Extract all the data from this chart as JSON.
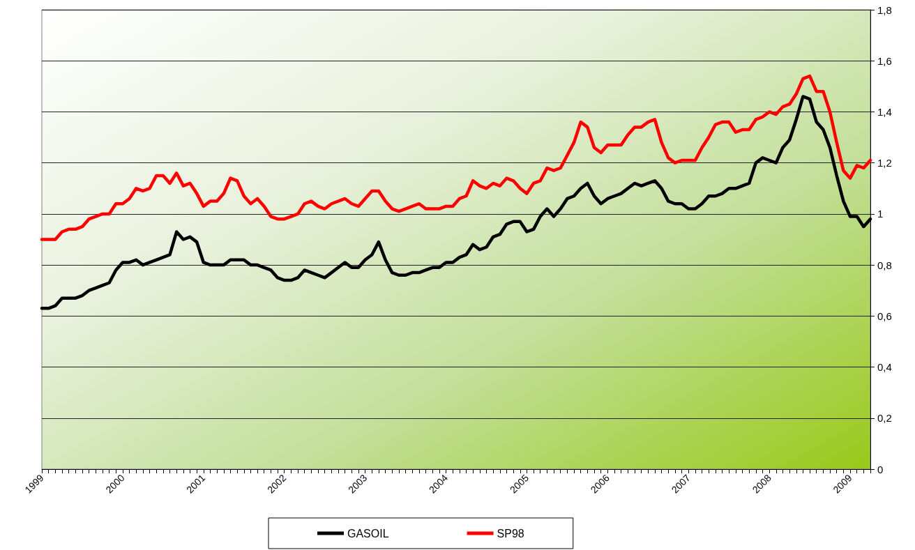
{
  "chart_data": {
    "type": "line",
    "categories": [
      "1999",
      null,
      null,
      null,
      null,
      null,
      null,
      null,
      null,
      null,
      null,
      null,
      "2000",
      null,
      null,
      null,
      null,
      null,
      null,
      null,
      null,
      null,
      null,
      null,
      "2001",
      null,
      null,
      null,
      null,
      null,
      null,
      null,
      null,
      null,
      null,
      null,
      "2002",
      null,
      null,
      null,
      null,
      null,
      null,
      null,
      null,
      null,
      null,
      null,
      "2003",
      null,
      null,
      null,
      null,
      null,
      null,
      null,
      null,
      null,
      null,
      null,
      "2004",
      null,
      null,
      null,
      null,
      null,
      null,
      null,
      null,
      null,
      null,
      null,
      "2005",
      null,
      null,
      null,
      null,
      null,
      null,
      null,
      null,
      null,
      null,
      null,
      "2006",
      null,
      null,
      null,
      null,
      null,
      null,
      null,
      null,
      null,
      null,
      null,
      "2007",
      null,
      null,
      null,
      null,
      null,
      null,
      null,
      null,
      null,
      null,
      null,
      "2008",
      null,
      null,
      null,
      null,
      null,
      null,
      null,
      null,
      null,
      null,
      null,
      "2009",
      null,
      null,
      null
    ],
    "series": [
      {
        "name": "GASOIL",
        "color": "#000000",
        "values": [
          0.63,
          0.63,
          0.64,
          0.67,
          0.67,
          0.67,
          0.68,
          0.7,
          0.71,
          0.72,
          0.73,
          0.78,
          0.81,
          0.81,
          0.82,
          0.8,
          0.81,
          0.82,
          0.83,
          0.84,
          0.93,
          0.9,
          0.91,
          0.89,
          0.81,
          0.8,
          0.8,
          0.8,
          0.82,
          0.82,
          0.82,
          0.8,
          0.8,
          0.79,
          0.78,
          0.75,
          0.74,
          0.74,
          0.75,
          0.78,
          0.77,
          0.76,
          0.75,
          0.77,
          0.79,
          0.81,
          0.79,
          0.79,
          0.82,
          0.84,
          0.89,
          0.82,
          0.77,
          0.76,
          0.76,
          0.77,
          0.77,
          0.78,
          0.79,
          0.79,
          0.81,
          0.81,
          0.83,
          0.84,
          0.88,
          0.86,
          0.87,
          0.91,
          0.92,
          0.96,
          0.97,
          0.97,
          0.93,
          0.94,
          0.99,
          1.02,
          0.99,
          1.02,
          1.06,
          1.07,
          1.1,
          1.12,
          1.07,
          1.04,
          1.06,
          1.07,
          1.08,
          1.1,
          1.12,
          1.11,
          1.12,
          1.13,
          1.1,
          1.05,
          1.04,
          1.04,
          1.02,
          1.02,
          1.04,
          1.07,
          1.07,
          1.08,
          1.1,
          1.1,
          1.11,
          1.12,
          1.2,
          1.22,
          1.21,
          1.2,
          1.26,
          1.29,
          1.37,
          1.46,
          1.45,
          1.36,
          1.33,
          1.26,
          1.15,
          1.05,
          0.99,
          0.99,
          0.95,
          0.98
        ]
      },
      {
        "name": "SP98",
        "color": "#ff0000",
        "values": [
          0.9,
          0.9,
          0.9,
          0.93,
          0.94,
          0.94,
          0.95,
          0.98,
          0.99,
          1.0,
          1.0,
          1.04,
          1.04,
          1.06,
          1.1,
          1.09,
          1.1,
          1.15,
          1.15,
          1.12,
          1.16,
          1.11,
          1.12,
          1.08,
          1.03,
          1.05,
          1.05,
          1.08,
          1.14,
          1.13,
          1.07,
          1.04,
          1.06,
          1.03,
          0.99,
          0.98,
          0.98,
          0.99,
          1.0,
          1.04,
          1.05,
          1.03,
          1.02,
          1.04,
          1.05,
          1.06,
          1.04,
          1.03,
          1.06,
          1.09,
          1.09,
          1.05,
          1.02,
          1.01,
          1.02,
          1.03,
          1.04,
          1.02,
          1.02,
          1.02,
          1.03,
          1.03,
          1.06,
          1.07,
          1.13,
          1.11,
          1.1,
          1.12,
          1.11,
          1.14,
          1.13,
          1.1,
          1.08,
          1.12,
          1.13,
          1.18,
          1.17,
          1.18,
          1.23,
          1.28,
          1.36,
          1.34,
          1.26,
          1.24,
          1.27,
          1.27,
          1.27,
          1.31,
          1.34,
          1.34,
          1.36,
          1.37,
          1.28,
          1.22,
          1.2,
          1.21,
          1.21,
          1.21,
          1.26,
          1.3,
          1.35,
          1.36,
          1.36,
          1.32,
          1.33,
          1.33,
          1.37,
          1.38,
          1.4,
          1.39,
          1.42,
          1.43,
          1.47,
          1.53,
          1.54,
          1.48,
          1.48,
          1.4,
          1.28,
          1.17,
          1.14,
          1.19,
          1.18,
          1.21
        ]
      }
    ],
    "ylim": [
      0,
      1.8
    ],
    "yticks": [
      0,
      {
        "value": 0.2,
        "label": "0,2"
      },
      {
        "value": 0.4,
        "label": "0,4"
      },
      {
        "value": 0.6,
        "label": "0,6"
      },
      {
        "value": 0.8,
        "label": "0,8"
      },
      1,
      {
        "value": 1.2,
        "label": "1,2"
      },
      {
        "value": 1.4,
        "label": "1,4"
      },
      {
        "value": 1.6,
        "label": "1,6"
      },
      {
        "value": 1.8,
        "label": "1,8"
      }
    ],
    "grid": "y",
    "legend": "bottom"
  }
}
